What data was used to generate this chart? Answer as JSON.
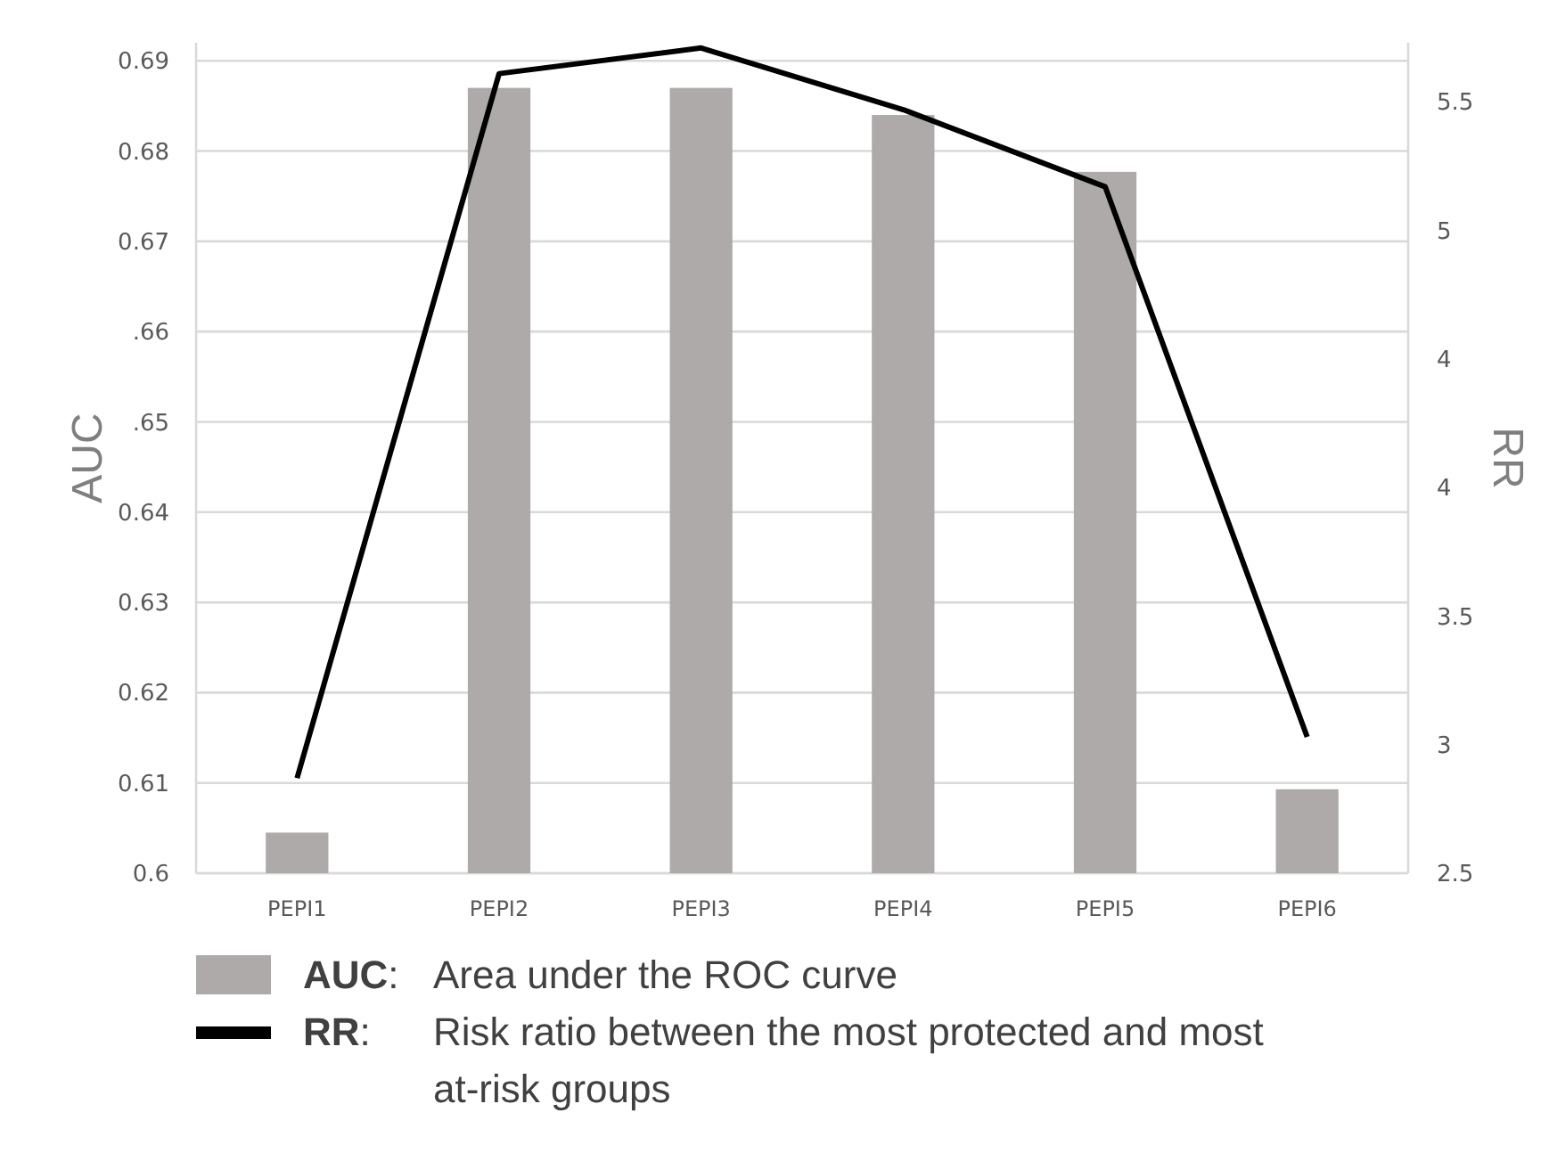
{
  "chart_data": {
    "type": "bar",
    "categories": [
      "PEPI1",
      "PEPI2",
      "PEPI3",
      "PEPI4",
      "PEPI5",
      "PEPI6"
    ],
    "series": [
      {
        "name": "AUC",
        "color": "#aeaaaa",
        "values": [
          0.6045,
          0.687,
          0.687,
          0.684,
          0.6777,
          0.6093
        ]
      },
      {
        "name": "RR",
        "type": "line",
        "axis": "y2",
        "color": "#000000",
        "values": [
          2.87,
          5.61,
          5.71,
          5.47,
          5.17,
          3.03
        ]
      }
    ],
    "ylabel": "AUC",
    "y2label": "RR",
    "ylim": [
      0.6,
      0.692
    ],
    "yticks": [
      0.6,
      0.61,
      0.62,
      0.63,
      0.64,
      {
        "value": 0.65,
        "label": ".65"
      },
      {
        "value": 0.66,
        "label": ".66"
      },
      0.67,
      0.68,
      0.69
    ],
    "y2lim": [
      2.5,
      5.73
    ],
    "y2ticks": [
      2.5,
      3,
      3.5,
      4,
      {
        "value": 4.5,
        "label": "4"
      },
      5,
      5.5
    ],
    "grid": "y",
    "legend": "bottom",
    "marker": "none",
    "line_style": "solid",
    "annotations": [
      ": Area under the ROC curve",
      ": Risk ratio between the most protected and most at-risk groups"
    ]
  }
}
